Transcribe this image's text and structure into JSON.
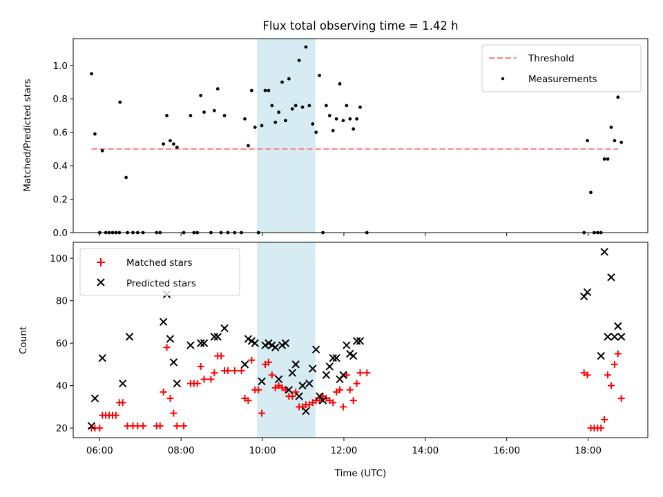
{
  "figure": {
    "title": "Flux total observing time = 1.42 h"
  },
  "chart_data": [
    {
      "type": "scatter",
      "panel": "top",
      "ylabel": "Matched/Predicted stars",
      "xlabel": "",
      "ylim": [
        0,
        1.16
      ],
      "yticks": [
        "0.0",
        "0.2",
        "0.4",
        "0.6",
        "0.8",
        "1.0"
      ],
      "xlim": [
        "05:21",
        "19:28"
      ],
      "highlight_span": [
        "09:52",
        "11:18"
      ],
      "legend": {
        "position": "top-right",
        "entries": [
          "Threshold",
          "Measurements"
        ]
      },
      "threshold": {
        "name": "Threshold",
        "value": 0.5,
        "x_range": [
          "05:48",
          "18:44"
        ],
        "color": "#ff7f7f"
      },
      "series": [
        {
          "name": "Measurements",
          "color": "#000000",
          "points": [
            [
              "05:48",
              0.95
            ],
            [
              "05:53",
              0.59
            ],
            [
              "06:00",
              0.0
            ],
            [
              "06:04",
              0.49
            ],
            [
              "06:09",
              0.0
            ],
            [
              "06:14",
              0.0
            ],
            [
              "06:19",
              0.0
            ],
            [
              "06:24",
              0.0
            ],
            [
              "06:29",
              0.0
            ],
            [
              "06:30",
              0.78
            ],
            [
              "06:39",
              0.33
            ],
            [
              "06:41",
              0.0
            ],
            [
              "06:49",
              0.0
            ],
            [
              "06:56",
              0.0
            ],
            [
              "07:04",
              0.0
            ],
            [
              "07:24",
              0.0
            ],
            [
              "07:29",
              0.0
            ],
            [
              "07:34",
              0.53
            ],
            [
              "07:39",
              0.7
            ],
            [
              "07:44",
              0.55
            ],
            [
              "07:49",
              0.53
            ],
            [
              "07:54",
              0.51
            ],
            [
              "08:04",
              0.0
            ],
            [
              "08:14",
              0.7
            ],
            [
              "08:19",
              0.0
            ],
            [
              "08:24",
              0.0
            ],
            [
              "08:29",
              0.82
            ],
            [
              "08:34",
              0.72
            ],
            [
              "08:44",
              0.0
            ],
            [
              "08:49",
              0.73
            ],
            [
              "08:54",
              0.86
            ],
            [
              "08:59",
              0.0
            ],
            [
              "09:04",
              0.7
            ],
            [
              "09:09",
              0.0
            ],
            [
              "09:19",
              0.0
            ],
            [
              "09:29",
              0.0
            ],
            [
              "09:34",
              0.68
            ],
            [
              "09:39",
              0.52
            ],
            [
              "09:44",
              0.85
            ],
            [
              "09:49",
              0.63
            ],
            [
              "09:54",
              0.0
            ],
            [
              "09:59",
              0.64
            ],
            [
              "10:04",
              0.85
            ],
            [
              "10:09",
              0.85
            ],
            [
              "10:14",
              0.76
            ],
            [
              "10:19",
              0.66
            ],
            [
              "10:24",
              0.72
            ],
            [
              "10:29",
              0.9
            ],
            [
              "10:34",
              0.67
            ],
            [
              "10:39",
              0.92
            ],
            [
              "10:44",
              0.74
            ],
            [
              "10:49",
              0.76
            ],
            [
              "10:54",
              1.03
            ],
            [
              "10:59",
              0.75
            ],
            [
              "11:04",
              1.11
            ],
            [
              "11:09",
              0.76
            ],
            [
              "11:14",
              0.65
            ],
            [
              "11:19",
              0.6
            ],
            [
              "11:24",
              0.94
            ],
            [
              "11:29",
              0.0
            ],
            [
              "11:34",
              0.76
            ],
            [
              "11:39",
              0.7
            ],
            [
              "11:44",
              0.61
            ],
            [
              "11:49",
              0.68
            ],
            [
              "11:54",
              0.89
            ],
            [
              "11:59",
              0.67
            ],
            [
              "12:04",
              0.76
            ],
            [
              "12:09",
              0.68
            ],
            [
              "12:14",
              0.62
            ],
            [
              "12:19",
              0.68
            ],
            [
              "12:24",
              0.75
            ],
            [
              "12:34",
              0.0
            ],
            [
              "17:54",
              0.0
            ],
            [
              "17:59",
              0.55
            ],
            [
              "18:04",
              0.24
            ],
            [
              "18:09",
              0.0
            ],
            [
              "18:14",
              0.0
            ],
            [
              "18:19",
              0.0
            ],
            [
              "18:24",
              0.44
            ],
            [
              "18:29",
              0.44
            ],
            [
              "18:34",
              0.63
            ],
            [
              "18:39",
              0.55
            ],
            [
              "18:44",
              0.81
            ],
            [
              "18:49",
              0.54
            ]
          ]
        }
      ]
    },
    {
      "type": "scatter",
      "panel": "bottom",
      "ylabel": "Count",
      "xlabel": "Time (UTC)",
      "ylim": [
        15.5,
        107.5
      ],
      "yticks": [
        "20",
        "40",
        "60",
        "80",
        "100"
      ],
      "xlim": [
        "05:21",
        "19:28"
      ],
      "xticks": [
        "06:00",
        "08:00",
        "10:00",
        "12:00",
        "14:00",
        "16:00",
        "18:00"
      ],
      "highlight_span": [
        "09:52",
        "11:18"
      ],
      "legend": {
        "position": "top-left",
        "entries": [
          "Matched stars",
          "Predicted stars"
        ]
      },
      "series": [
        {
          "name": "Matched stars",
          "marker": "plus",
          "color": "#ff0000",
          "points": [
            [
              "05:48",
              20
            ],
            [
              "05:53",
              20
            ],
            [
              "06:00",
              20
            ],
            [
              "06:04",
              26
            ],
            [
              "06:09",
              26
            ],
            [
              "06:14",
              26
            ],
            [
              "06:19",
              26
            ],
            [
              "06:24",
              26
            ],
            [
              "06:29",
              32
            ],
            [
              "06:34",
              32
            ],
            [
              "06:41",
              21
            ],
            [
              "06:49",
              21
            ],
            [
              "06:56",
              21
            ],
            [
              "07:04",
              21
            ],
            [
              "07:24",
              21
            ],
            [
              "07:29",
              21
            ],
            [
              "07:34",
              37
            ],
            [
              "07:39",
              58
            ],
            [
              "07:44",
              34
            ],
            [
              "07:49",
              27
            ],
            [
              "07:54",
              21
            ],
            [
              "08:04",
              21
            ],
            [
              "08:14",
              41
            ],
            [
              "08:19",
              41
            ],
            [
              "08:24",
              41
            ],
            [
              "08:29",
              49
            ],
            [
              "08:34",
              43
            ],
            [
              "08:44",
              43
            ],
            [
              "08:49",
              46
            ],
            [
              "08:54",
              54
            ],
            [
              "08:59",
              54
            ],
            [
              "09:04",
              47
            ],
            [
              "09:09",
              47
            ],
            [
              "09:19",
              47
            ],
            [
              "09:29",
              47
            ],
            [
              "09:34",
              34
            ],
            [
              "09:39",
              33
            ],
            [
              "09:44",
              52
            ],
            [
              "09:49",
              38
            ],
            [
              "09:54",
              38
            ],
            [
              "09:59",
              27
            ],
            [
              "10:04",
              50
            ],
            [
              "10:09",
              51
            ],
            [
              "10:14",
              45
            ],
            [
              "10:19",
              39
            ],
            [
              "10:24",
              40
            ],
            [
              "10:29",
              39
            ],
            [
              "10:34",
              38
            ],
            [
              "10:39",
              35
            ],
            [
              "10:44",
              35
            ],
            [
              "10:49",
              37
            ],
            [
              "10:54",
              30
            ],
            [
              "10:59",
              30
            ],
            [
              "11:04",
              31
            ],
            [
              "11:09",
              31
            ],
            [
              "11:14",
              32
            ],
            [
              "11:19",
              33
            ],
            [
              "11:24",
              33
            ],
            [
              "11:29",
              35
            ],
            [
              "11:34",
              34
            ],
            [
              "11:39",
              33
            ],
            [
              "11:44",
              32
            ],
            [
              "11:49",
              37
            ],
            [
              "11:54",
              38
            ],
            [
              "11:59",
              30
            ],
            [
              "12:04",
              45
            ],
            [
              "12:09",
              38
            ],
            [
              "12:14",
              33
            ],
            [
              "12:19",
              41
            ],
            [
              "12:24",
              46
            ],
            [
              "12:34",
              46
            ],
            [
              "17:54",
              46
            ],
            [
              "17:59",
              45
            ],
            [
              "18:04",
              20
            ],
            [
              "18:09",
              20
            ],
            [
              "18:14",
              20
            ],
            [
              "18:19",
              20
            ],
            [
              "18:24",
              24
            ],
            [
              "18:29",
              45
            ],
            [
              "18:34",
              40
            ],
            [
              "18:39",
              50
            ],
            [
              "18:44",
              55
            ],
            [
              "18:49",
              34
            ]
          ]
        },
        {
          "name": "Predicted stars",
          "marker": "x",
          "color": "#000000",
          "points": [
            [
              "05:48",
              21
            ],
            [
              "05:53",
              34
            ],
            [
              "06:04",
              53
            ],
            [
              "06:34",
              41
            ],
            [
              "06:44",
              63
            ],
            [
              "07:34",
              70
            ],
            [
              "07:39",
              83
            ],
            [
              "07:44",
              62
            ],
            [
              "07:49",
              51
            ],
            [
              "07:54",
              41
            ],
            [
              "08:14",
              59
            ],
            [
              "08:29",
              60
            ],
            [
              "08:34",
              60
            ],
            [
              "08:49",
              63
            ],
            [
              "08:54",
              63
            ],
            [
              "09:04",
              67
            ],
            [
              "09:34",
              50
            ],
            [
              "09:39",
              62
            ],
            [
              "09:44",
              61
            ],
            [
              "09:49",
              60
            ],
            [
              "09:59",
              42
            ],
            [
              "10:04",
              59
            ],
            [
              "10:09",
              60
            ],
            [
              "10:14",
              59
            ],
            [
              "10:19",
              58
            ],
            [
              "10:24",
              43
            ],
            [
              "10:29",
              59
            ],
            [
              "10:34",
              60
            ],
            [
              "10:39",
              38
            ],
            [
              "10:44",
              46
            ],
            [
              "10:49",
              50
            ],
            [
              "10:54",
              35
            ],
            [
              "10:59",
              40
            ],
            [
              "11:04",
              28
            ],
            [
              "11:09",
              41
            ],
            [
              "11:14",
              48
            ],
            [
              "11:19",
              57
            ],
            [
              "11:24",
              35
            ],
            [
              "11:29",
              33
            ],
            [
              "11:34",
              45
            ],
            [
              "11:39",
              49
            ],
            [
              "11:44",
              53
            ],
            [
              "11:49",
              53
            ],
            [
              "11:54",
              43
            ],
            [
              "11:59",
              45
            ],
            [
              "12:04",
              59
            ],
            [
              "12:09",
              55
            ],
            [
              "12:14",
              54
            ],
            [
              "12:19",
              61
            ],
            [
              "12:24",
              61
            ],
            [
              "17:54",
              82
            ],
            [
              "17:59",
              84
            ],
            [
              "18:19",
              54
            ],
            [
              "18:24",
              103
            ],
            [
              "18:29",
              63
            ],
            [
              "18:34",
              91
            ],
            [
              "18:39",
              63
            ],
            [
              "18:44",
              68
            ],
            [
              "18:49",
              63
            ]
          ]
        }
      ]
    }
  ]
}
